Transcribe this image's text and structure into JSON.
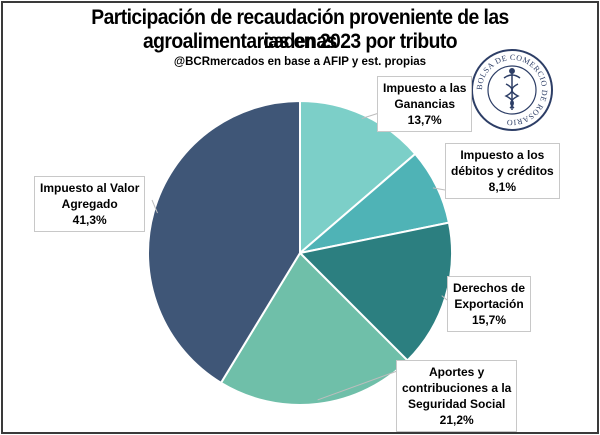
{
  "title_line1": "Participación de recaudación proveniente de las cadenas",
  "title_line2": "agroalimentarias en 2023 por tributo",
  "subtitle": "@BCRmercados en base a AFIP y est. propias",
  "logo_text": "BOLSA DE COMERCIO DE ROSARIO",
  "chart_data": {
    "type": "pie",
    "title": "Participación de recaudación proveniente de las cadenas agroalimentarias en 2023 por tributo",
    "start": "12 o'clock, clockwise",
    "slices": [
      {
        "name": "Impuesto a las Ganancias",
        "value": 13.7,
        "label_lines": [
          "Impuesto a las",
          "Ganancias",
          "13,7%"
        ],
        "color": "#7ccfc8"
      },
      {
        "name": "Impuesto a los débitos y créditos",
        "value": 8.1,
        "label_lines": [
          "Impuesto a los",
          "débitos y créditos",
          "8,1%"
        ],
        "color": "#4fb3b6"
      },
      {
        "name": "Derechos de Exportación",
        "value": 15.7,
        "label_lines": [
          "Derechos de",
          "Exportación",
          "15,7%"
        ],
        "color": "#2c7f80"
      },
      {
        "name": "Aportes y contribuciones a la Seguridad Social",
        "value": 21.2,
        "label_lines": [
          "Aportes y",
          "contribuciones  a la",
          "Seguridad Social",
          "21,2%"
        ],
        "color": "#6fbfa9"
      },
      {
        "name": "Impuesto al Valor Agregado",
        "value": 41.3,
        "label_lines": [
          "Impuesto al Valor",
          "Agregado",
          "41,3%"
        ],
        "color": "#3f5677"
      }
    ]
  }
}
